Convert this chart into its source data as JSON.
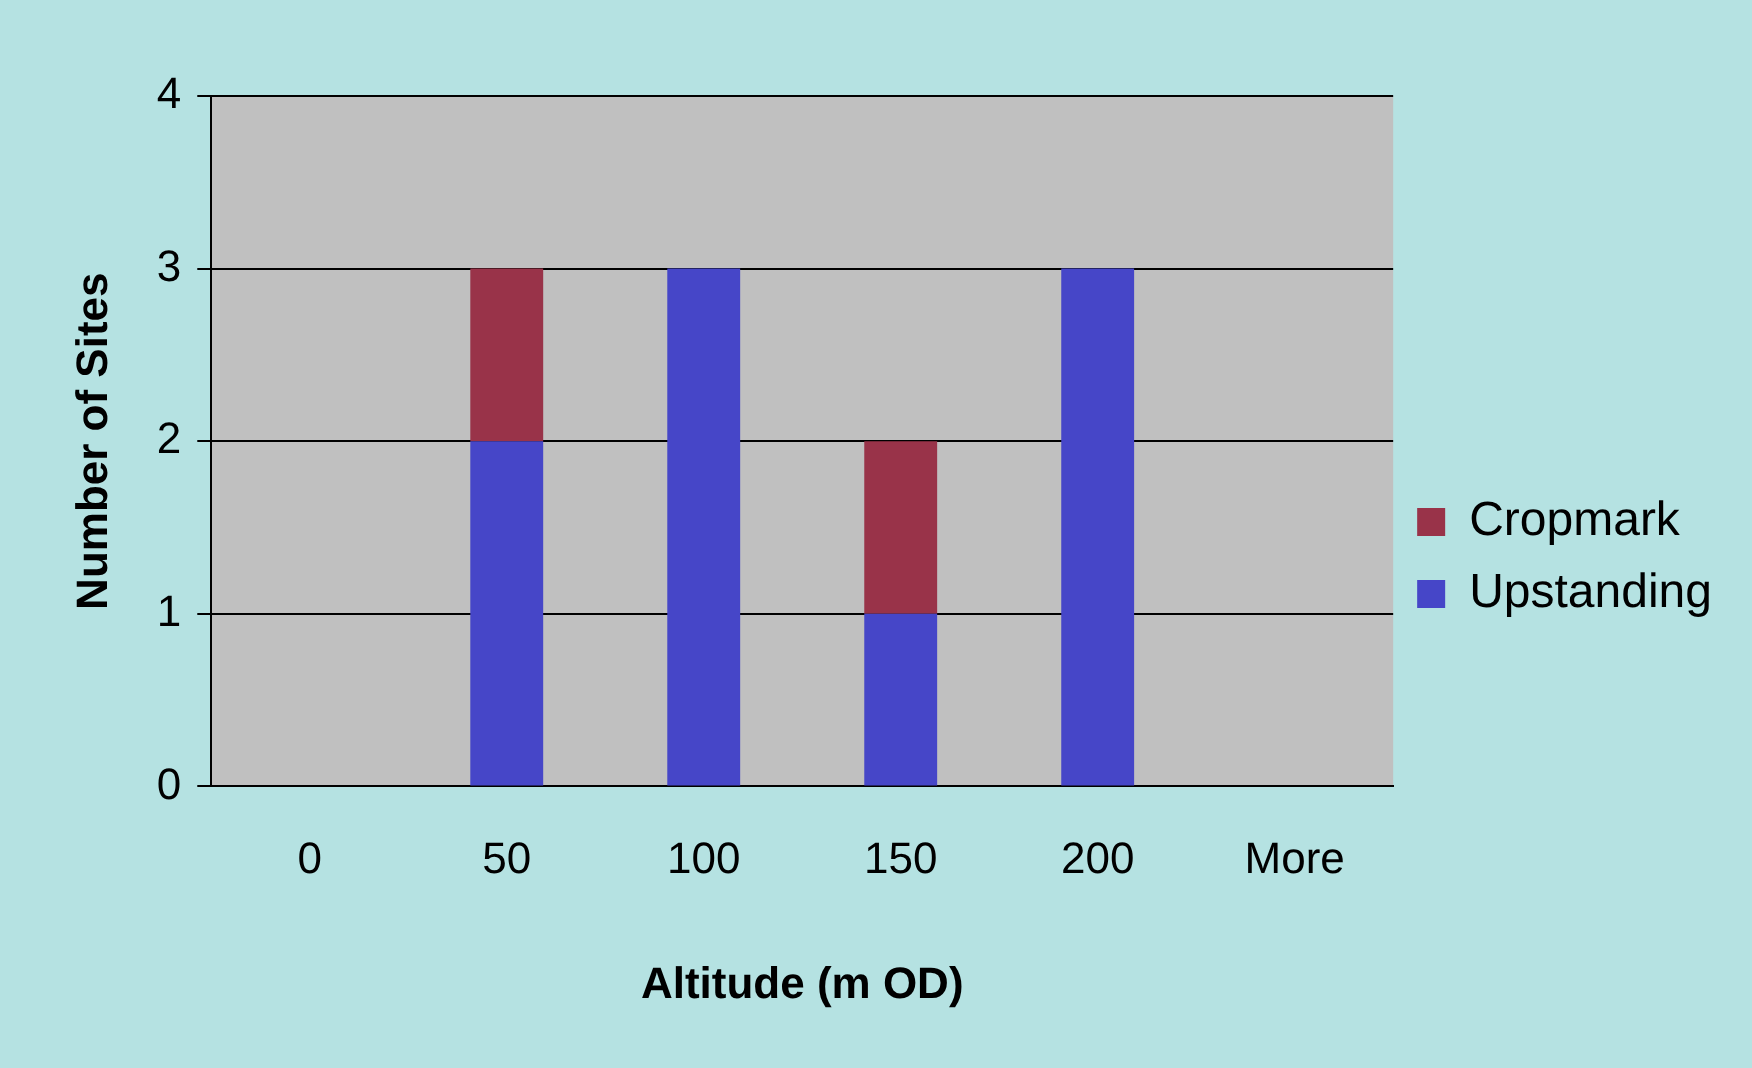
{
  "chart_data": {
    "type": "bar",
    "xlabel": "Altitude (m OD)",
    "ylabel": "Number of Sites",
    "categories": [
      "0",
      "50",
      "100",
      "150",
      "200",
      "More"
    ],
    "stacked": true,
    "series": [
      {
        "name": "Upstanding",
        "color": "#4646c8",
        "values": [
          0,
          2,
          3,
          1,
          3,
          0
        ]
      },
      {
        "name": "Cropmark",
        "color": "#993349",
        "values": [
          0,
          1,
          0,
          1,
          0,
          0
        ]
      }
    ],
    "ylim": [
      0,
      4
    ],
    "yticks": [
      0,
      1,
      2,
      3,
      4
    ],
    "grid": "y",
    "legend": "right"
  }
}
